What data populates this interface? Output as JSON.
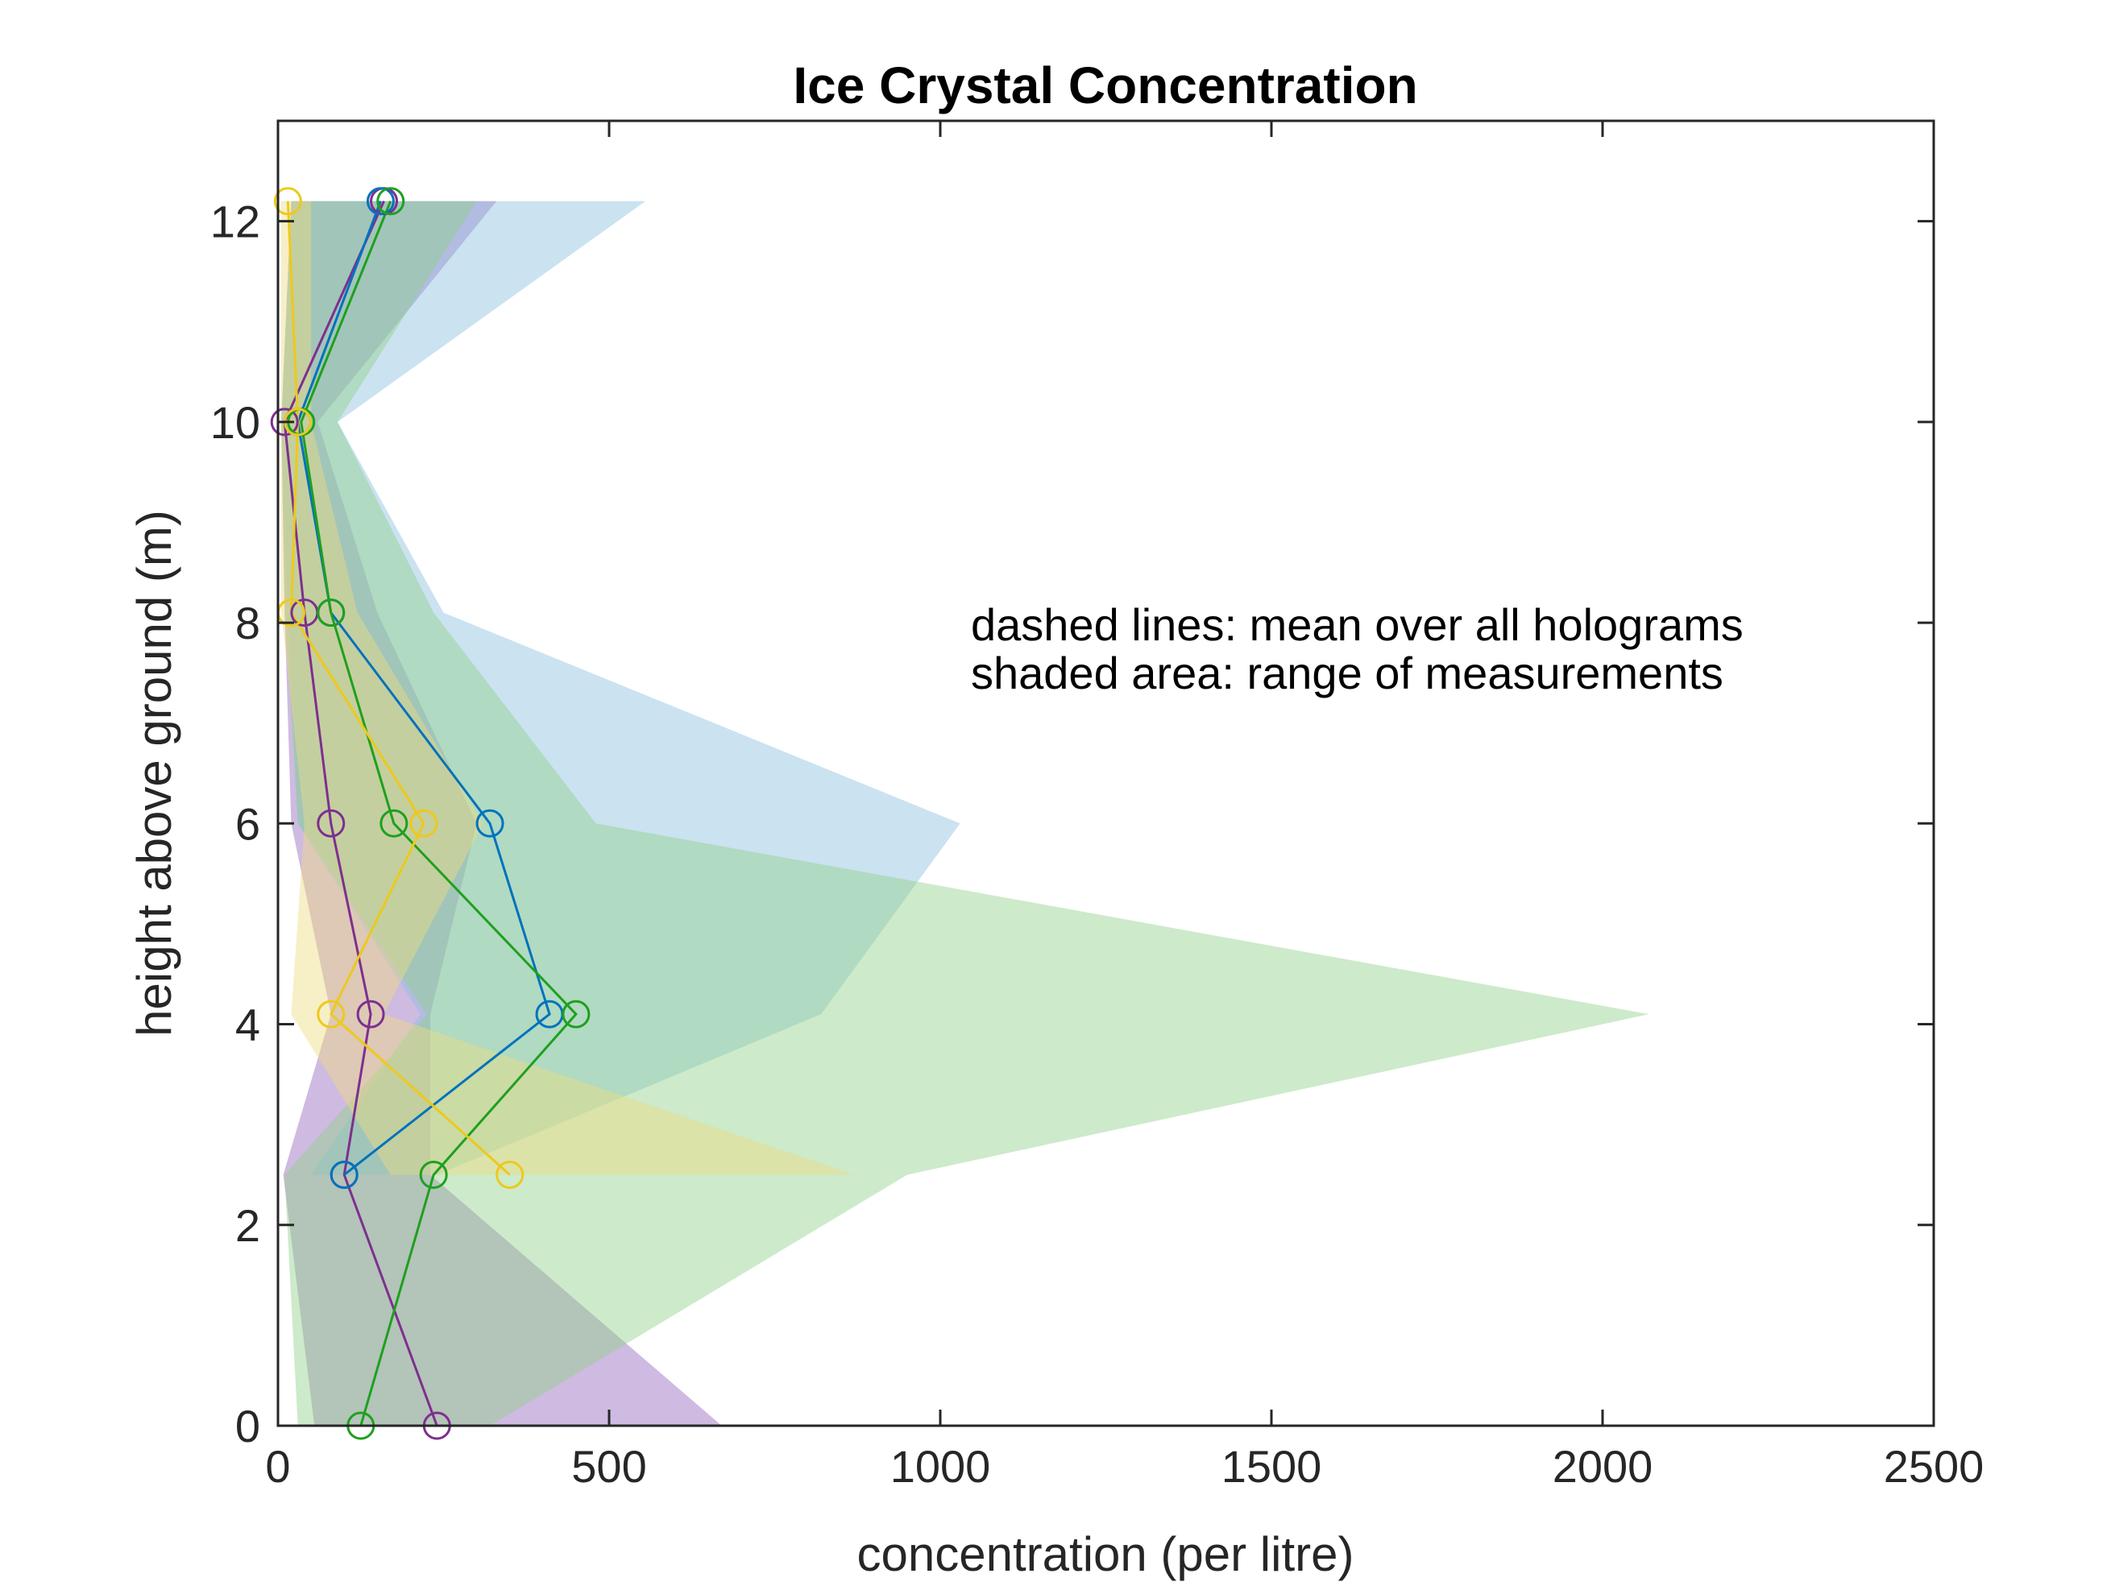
{
  "chart_data": {
    "type": "line",
    "title": "Ice Crystal Concentration",
    "xlabel": "concentration (per litre)",
    "ylabel": "height above ground (m)",
    "xlim": [
      0,
      2500
    ],
    "ylim": [
      0,
      13
    ],
    "xticks": [
      "0",
      "500",
      "1000",
      "1500",
      "2000",
      "2500"
    ],
    "yticks": [
      "0",
      "2",
      "4",
      "6",
      "8",
      "10",
      "12"
    ],
    "annotations": [
      "dashed lines: mean over all holograms",
      "shaded area: range of measurements"
    ],
    "grid": false,
    "legend": "none",
    "series": [
      {
        "color": "#7E2F8E",
        "fill": "#9467BD",
        "y": [
          0,
          2.5,
          4.1,
          6,
          8.1,
          10,
          12.2
        ],
        "x": [
          240,
          100,
          140,
          80,
          40,
          10,
          160
        ],
        "range_min": [
          55,
          8,
          80,
          20,
          10,
          5,
          20
        ],
        "range_max": [
          670,
          230,
          230,
          300,
          150,
          60,
          330
        ]
      },
      {
        "color": "#0072BD",
        "fill": "#8CBEE0",
        "y": [
          2.5,
          4.1,
          6,
          8.1,
          10,
          12.2
        ],
        "x": [
          100,
          410,
          320,
          80,
          30,
          155
        ],
        "range_min": [
          50,
          215,
          30,
          15,
          5,
          20
        ],
        "range_max": [
          240,
          820,
          1030,
          250,
          90,
          555
        ]
      },
      {
        "color": "#1EA01E",
        "fill": "#90D08A",
        "y": [
          0,
          2.5,
          4.1,
          6,
          8.1,
          10,
          12.2
        ],
        "x": [
          125,
          235,
          450,
          175,
          80,
          35,
          170
        ],
        "range_min": [
          30,
          10,
          225,
          30,
          10,
          5,
          20
        ],
        "range_max": [
          320,
          950,
          2070,
          480,
          235,
          90,
          300
        ]
      },
      {
        "color": "#EDC91C",
        "fill": "#EDDC80",
        "y": [
          2.5,
          4.1,
          6,
          8.1,
          10,
          12.2
        ],
        "x": [
          350,
          80,
          220,
          20,
          30,
          15
        ],
        "range_min": [
          170,
          20,
          40,
          5,
          5,
          5
        ],
        "range_max": [
          870,
          160,
          310,
          120,
          50,
          50
        ]
      }
    ]
  }
}
